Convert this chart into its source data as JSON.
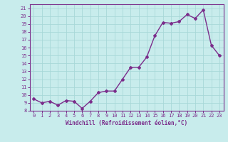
{
  "x": [
    0,
    1,
    2,
    3,
    4,
    5,
    6,
    7,
    8,
    9,
    10,
    11,
    12,
    13,
    14,
    15,
    16,
    17,
    18,
    19,
    20,
    21,
    22,
    23
  ],
  "y": [
    9.5,
    9.0,
    9.2,
    8.7,
    9.3,
    9.2,
    8.3,
    9.2,
    10.3,
    10.5,
    10.5,
    12.0,
    13.5,
    13.5,
    14.8,
    17.5,
    19.2,
    19.1,
    19.3,
    20.2,
    19.7,
    20.8,
    16.3,
    15.0
  ],
  "line_color": "#7b2d8b",
  "marker": "D",
  "marker_size": 2,
  "bg_color": "#c8ecec",
  "grid_color": "#a8d8d8",
  "xlabel": "Windchill (Refroidissement éolien,°C)",
  "ylim": [
    8,
    21.5
  ],
  "xlim": [
    -0.5,
    23.5
  ],
  "yticks": [
    8,
    9,
    10,
    11,
    12,
    13,
    14,
    15,
    16,
    17,
    18,
    19,
    20,
    21
  ],
  "xticks": [
    0,
    1,
    2,
    3,
    4,
    5,
    6,
    7,
    8,
    9,
    10,
    11,
    12,
    13,
    14,
    15,
    16,
    17,
    18,
    19,
    20,
    21,
    22,
    23
  ],
  "axis_color": "#7b2d8b",
  "tick_label_color": "#7b2d8b",
  "xlabel_color": "#7b2d8b",
  "linewidth": 1.0,
  "tick_fontsize": 5.0,
  "xlabel_fontsize": 5.5
}
